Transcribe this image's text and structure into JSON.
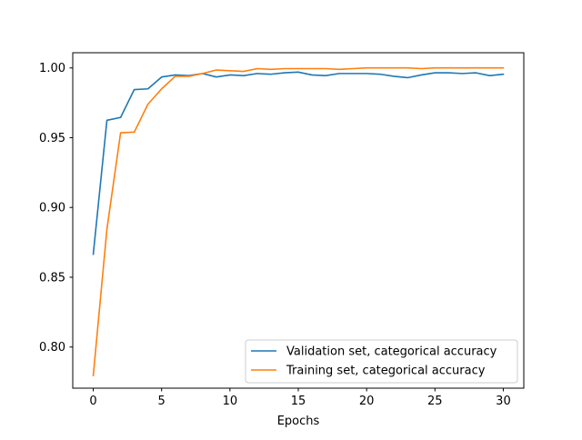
{
  "chart_data": {
    "type": "line",
    "title": "",
    "xlabel": "Epochs",
    "ylabel": "",
    "xlim": [
      -1.5,
      31.5
    ],
    "ylim": [
      0.7705,
      1.0109
    ],
    "xticks": [
      0,
      5,
      10,
      15,
      20,
      25,
      30
    ],
    "xtick_labels": [
      "0",
      "5",
      "10",
      "15",
      "20",
      "25",
      "30"
    ],
    "yticks": [
      0.8,
      0.85,
      0.9,
      0.95,
      1.0
    ],
    "ytick_labels": [
      "0.80",
      "0.85",
      "0.90",
      "0.95",
      "1.00"
    ],
    "grid": false,
    "legend_position": "lower-right",
    "x": [
      0,
      1,
      2,
      3,
      4,
      5,
      6,
      7,
      8,
      9,
      10,
      11,
      12,
      13,
      14,
      15,
      16,
      17,
      18,
      19,
      20,
      21,
      22,
      23,
      24,
      25,
      26,
      27,
      28,
      29,
      30
    ],
    "series": [
      {
        "name": "Validation set, categorical accuracy",
        "color": "#1f77b4",
        "values": [
          0.8665,
          0.9625,
          0.9645,
          0.9845,
          0.985,
          0.9935,
          0.995,
          0.9945,
          0.996,
          0.9935,
          0.995,
          0.9945,
          0.996,
          0.9955,
          0.9965,
          0.997,
          0.995,
          0.9945,
          0.996,
          0.996,
          0.996,
          0.9955,
          0.994,
          0.993,
          0.995,
          0.9965,
          0.9965,
          0.996,
          0.9965,
          0.9945,
          0.9955
        ]
      },
      {
        "name": "Training set, categorical accuracy",
        "color": "#ff7f0e",
        "values": [
          0.7795,
          0.8845,
          0.9535,
          0.954,
          0.974,
          0.985,
          0.994,
          0.994,
          0.996,
          0.9985,
          0.998,
          0.9975,
          0.9995,
          0.999,
          0.9995,
          0.9995,
          0.9995,
          0.9995,
          0.999,
          0.9995,
          1.0,
          1.0,
          1.0,
          1.0,
          0.9995,
          1.0,
          1.0,
          1.0,
          1.0,
          1.0,
          1.0
        ]
      }
    ]
  }
}
